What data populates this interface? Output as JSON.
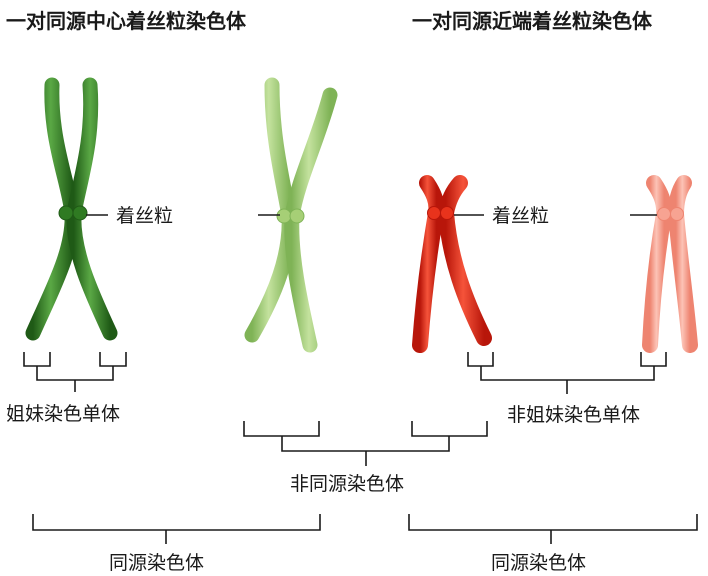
{
  "titles": {
    "left": "一对同源中心着丝粒染色体",
    "right": "一对同源近端着丝粒染色体"
  },
  "labels": {
    "centromere_left": "着丝粒",
    "centromere_right": "着丝粒",
    "sister_chromatids": "姐妹染色单体",
    "non_sister_chromatids": "非姐妹染色单体",
    "non_homologous": "非同源染色体",
    "homologous_left": "同源染色体",
    "homologous_right": "同源染色体"
  },
  "colors": {
    "dark_green": "#3f8a2e",
    "light_green": "#a6cf76",
    "red": "#e8331c",
    "salmon": "#f7a392",
    "line": "#1a1a1a"
  }
}
